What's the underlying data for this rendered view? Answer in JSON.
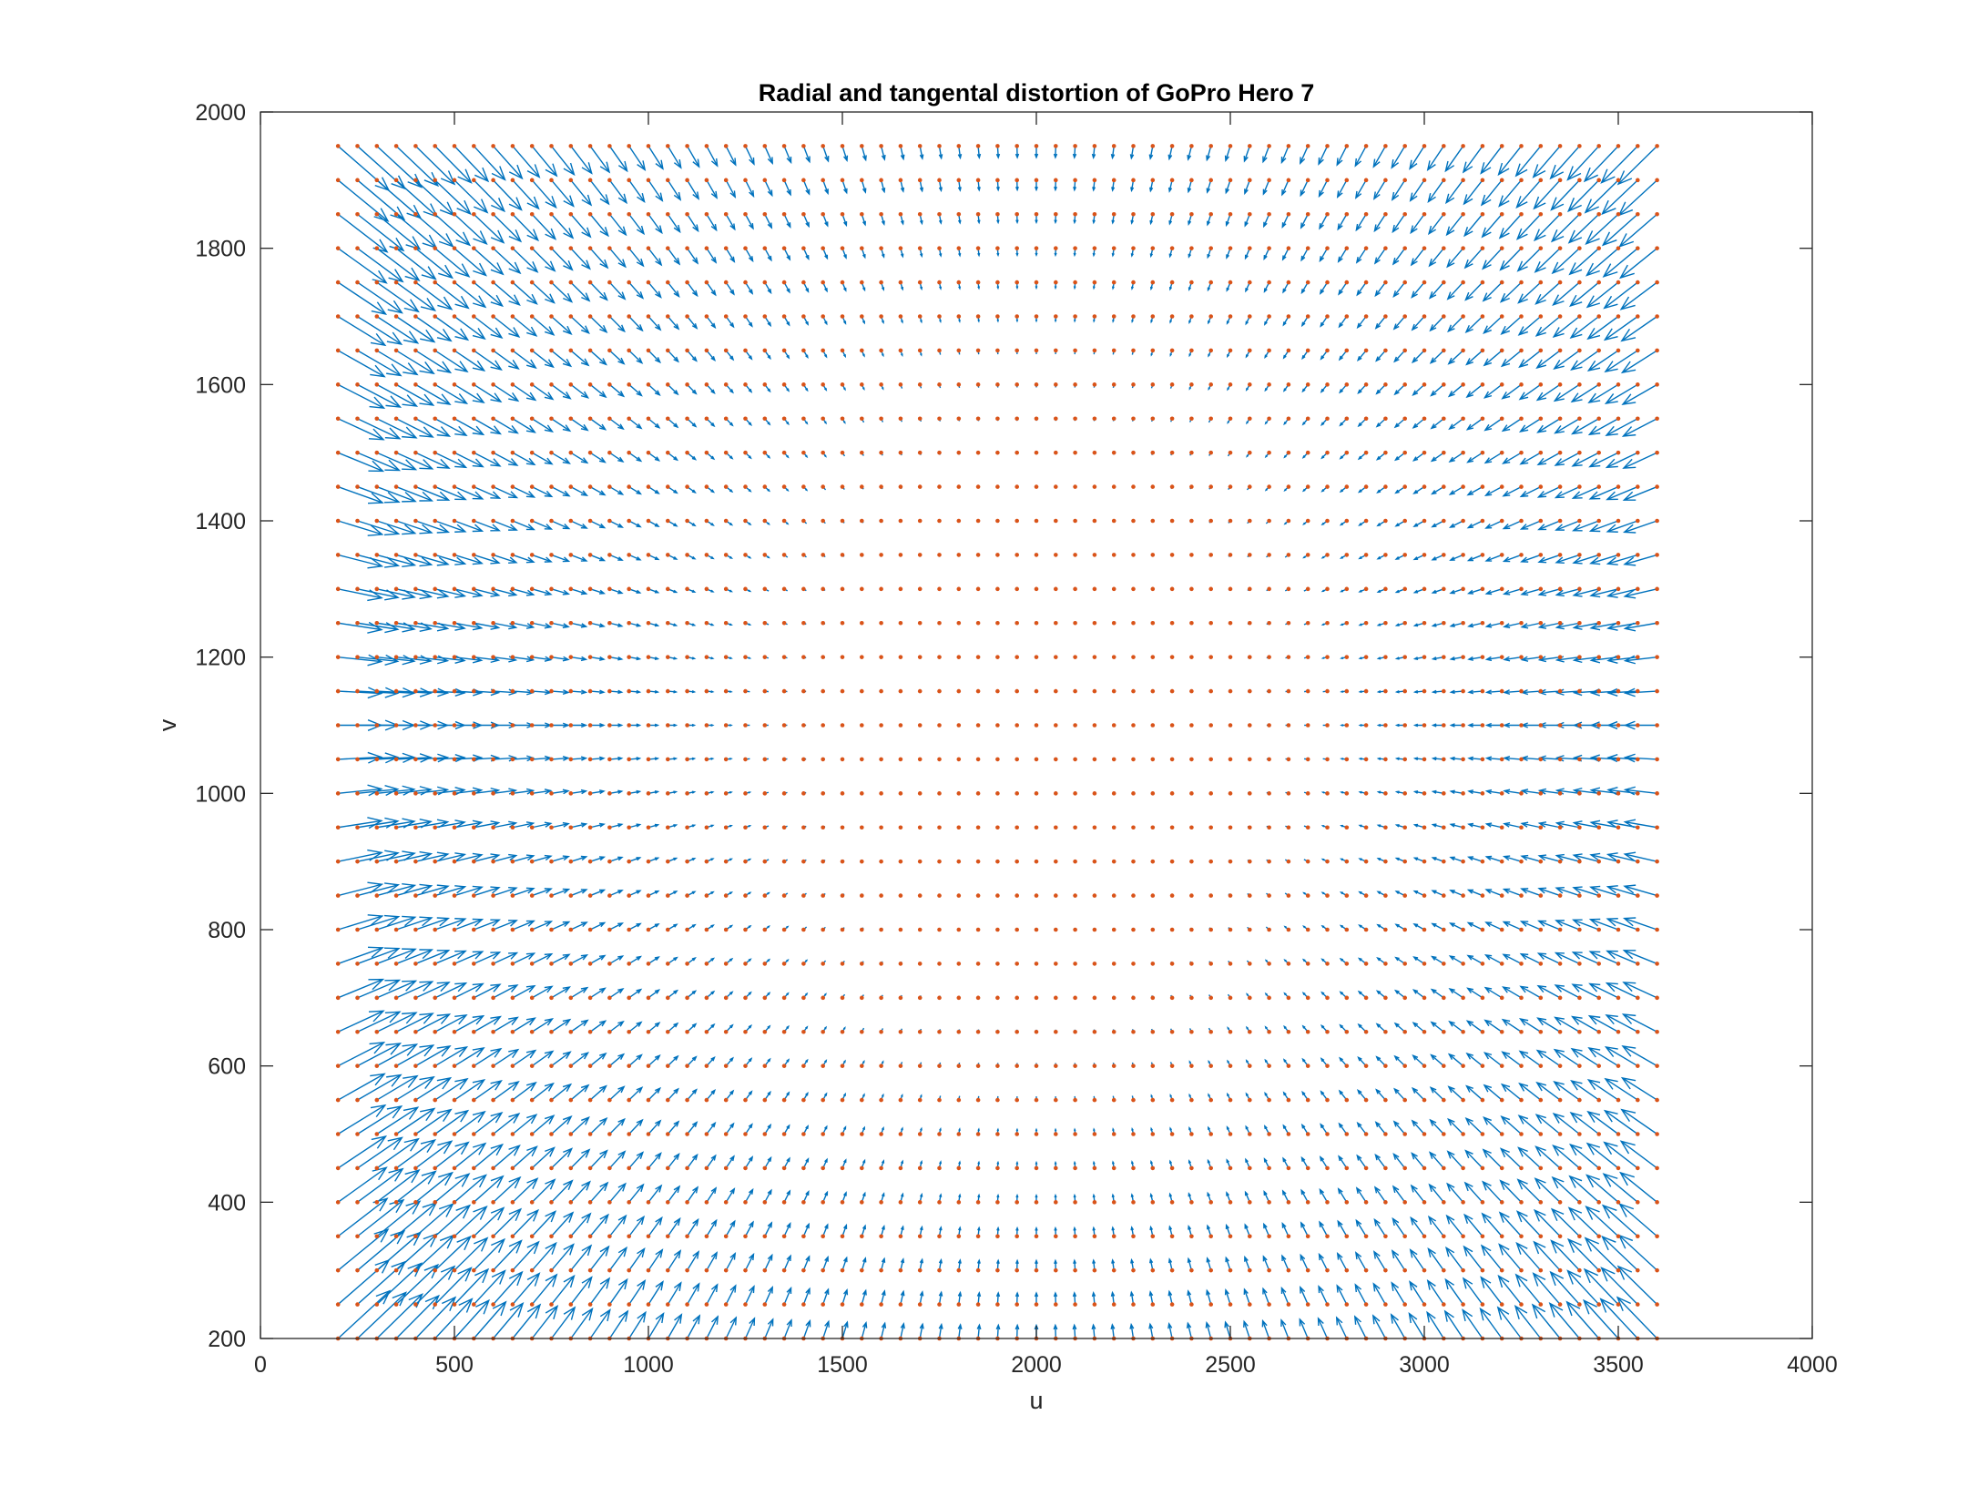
{
  "chart_data": {
    "type": "quiver",
    "title": "Radial and tangental distortion of GoPro Hero 7",
    "xlabel": "u",
    "ylabel": "v",
    "xlim": [
      0,
      4000
    ],
    "ylim": [
      200,
      2000
    ],
    "xticks": [
      0,
      500,
      1000,
      1500,
      2000,
      2500,
      3000,
      3500,
      4000
    ],
    "yticks": [
      200,
      400,
      600,
      800,
      1000,
      1200,
      1400,
      1600,
      1800,
      2000
    ],
    "grid": false,
    "box": true,
    "series": [
      {
        "kind": "points",
        "color": "#D95319",
        "u_range": [
          200,
          3600
        ],
        "u_step": 50,
        "v_range": [
          200,
          1950
        ],
        "v_step": 50
      },
      {
        "kind": "vectors",
        "color": "#0072BD",
        "u_range": [
          200,
          3600
        ],
        "u_step": 50,
        "v_range": [
          200,
          1950
        ],
        "v_step": 50,
        "distortion_center": [
          2000,
          1100
        ],
        "model": "vectors point toward the distortion center; magnitude grows with distance from it",
        "max_vector_length": [
          -110,
          100
        ]
      }
    ]
  }
}
